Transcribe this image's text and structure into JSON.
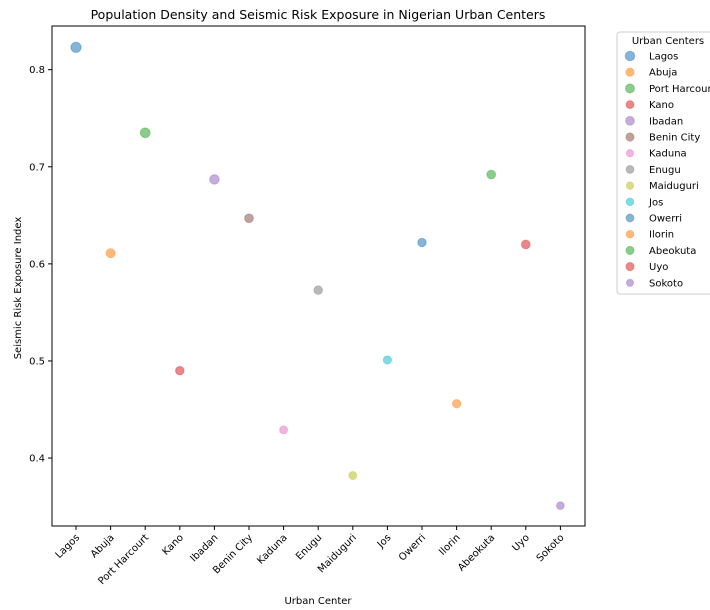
{
  "chart_data": {
    "type": "scatter",
    "title": "Population Density and Seismic Risk Exposure in Nigerian Urban Centers",
    "xlabel": "Urban Center",
    "ylabel": "Seismic Risk Exposure Index",
    "ylim": [
      0.33,
      0.845
    ],
    "yticks": [
      "0.4",
      "0.5",
      "0.6",
      "0.7",
      "0.8"
    ],
    "grid": false,
    "legend": {
      "title": "Urban Centers",
      "placement": "outside-right"
    },
    "categories": [
      "Lagos",
      "Abuja",
      "Port Harcourt",
      "Kano",
      "Ibadan",
      "Benin City",
      "Kaduna",
      "Enugu",
      "Maiduguri",
      "Jos",
      "Owerri",
      "Ilorin",
      "Abeokuta",
      "Uyo",
      "Sokoto"
    ],
    "series": [
      {
        "name": "Lagos",
        "x": "Lagos",
        "y": 0.823,
        "color": "#1f77b4",
        "size": 1.0
      },
      {
        "name": "Abuja",
        "x": "Abuja",
        "y": 0.611,
        "color": "#ff7f0e",
        "size": 0.75
      },
      {
        "name": "Port Harcourt",
        "x": "Port Harcourt",
        "y": 0.735,
        "color": "#2ca02c",
        "size": 0.9
      },
      {
        "name": "Kano",
        "x": "Kano",
        "y": 0.49,
        "color": "#d62728",
        "size": 0.65
      },
      {
        "name": "Ibadan",
        "x": "Ibadan",
        "y": 0.687,
        "color": "#9467bd",
        "size": 0.85
      },
      {
        "name": "Benin City",
        "x": "Benin City",
        "y": 0.647,
        "color": "#8c564b",
        "size": 0.7
      },
      {
        "name": "Kaduna",
        "x": "Kaduna",
        "y": 0.429,
        "color": "#e377c2",
        "size": 0.55
      },
      {
        "name": "Enugu",
        "x": "Enugu",
        "y": 0.573,
        "color": "#7f7f7f",
        "size": 0.65
      },
      {
        "name": "Maiduguri",
        "x": "Maiduguri",
        "y": 0.382,
        "color": "#bcbd22",
        "size": 0.55
      },
      {
        "name": "Jos",
        "x": "Jos",
        "y": 0.501,
        "color": "#17becf",
        "size": 0.6
      },
      {
        "name": "Owerri",
        "x": "Owerri",
        "y": 0.622,
        "color": "#1f77b4",
        "size": 0.65
      },
      {
        "name": "Ilorin",
        "x": "Ilorin",
        "y": 0.456,
        "color": "#ff7f0e",
        "size": 0.6
      },
      {
        "name": "Abeokuta",
        "x": "Abeokuta",
        "y": 0.692,
        "color": "#2ca02c",
        "size": 0.7
      },
      {
        "name": "Uyo",
        "x": "Uyo",
        "y": 0.62,
        "color": "#d62728",
        "size": 0.7
      },
      {
        "name": "Sokoto",
        "x": "Sokoto",
        "y": 0.351,
        "color": "#9467bd",
        "size": 0.5
      }
    ]
  }
}
